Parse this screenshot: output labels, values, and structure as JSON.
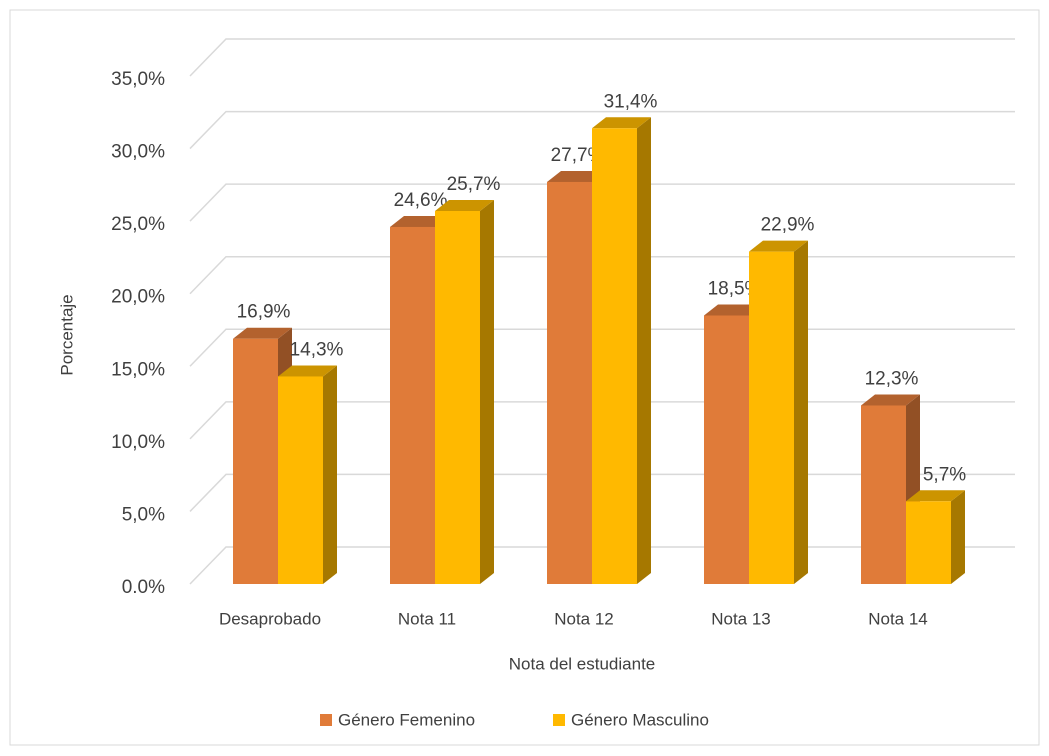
{
  "chart_data": {
    "type": "bar3d",
    "categories": [
      "Desaprobado",
      "Nota 11",
      "Nota 12",
      "Nota 13",
      "Nota 14"
    ],
    "series": [
      {
        "name": "Género  Femenino",
        "color": "#e07b39",
        "values": [
          16.9,
          24.6,
          27.7,
          18.5,
          12.3
        ],
        "value_labels": [
          "16,9%",
          "24,6%",
          "27,7%",
          "18,5%",
          "12,3%"
        ]
      },
      {
        "name": "Género  Masculino",
        "color": "#ffb900",
        "values": [
          14.3,
          25.7,
          31.4,
          22.9,
          5.7
        ],
        "value_labels": [
          "14,3%",
          "25,7%",
          "31,4%",
          "22,9%",
          "5,7%"
        ]
      }
    ],
    "ylim": [
      0,
      35
    ],
    "yticks": [
      {
        "value": 0,
        "label": "0.0%"
      },
      {
        "value": 5,
        "label": "5,0%"
      },
      {
        "value": 10,
        "label": "10,0%"
      },
      {
        "value": 15,
        "label": "15,0%"
      },
      {
        "value": 20,
        "label": "20,0%"
      },
      {
        "value": 25,
        "label": "25,0%"
      },
      {
        "value": 30,
        "label": "30,0%"
      },
      {
        "value": 35,
        "label": "35,0%"
      }
    ],
    "y_label": "Porcentaje",
    "x_label": "Nota del estudiante",
    "grid": true,
    "legend": "bottom"
  }
}
